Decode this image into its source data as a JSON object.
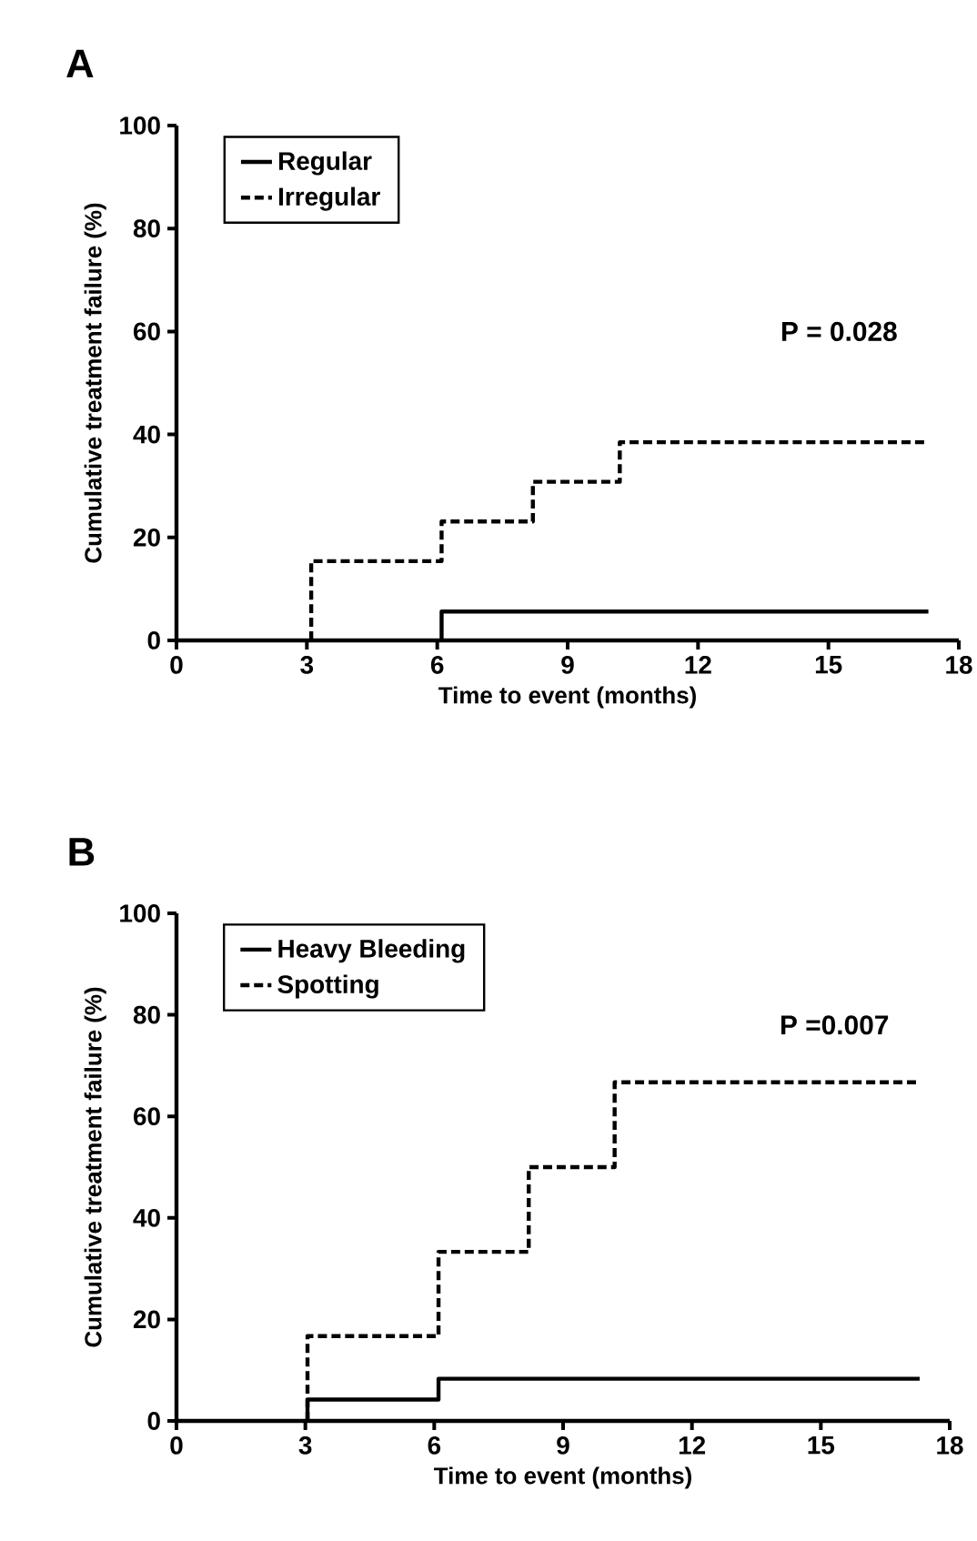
{
  "chart_data": [
    {
      "type": "step",
      "title": "A",
      "xlabel": "Time to event (months)",
      "ylabel": "Cumulative treatment failure (%)",
      "xlim": [
        0,
        18
      ],
      "ylim": [
        0,
        100
      ],
      "xticks": [
        0,
        3,
        6,
        9,
        12,
        15,
        18
      ],
      "yticks": [
        0,
        20,
        40,
        60,
        80,
        100
      ],
      "legend": "top left",
      "annotations": [
        "P = 0.028"
      ],
      "series": [
        {
          "name": "Regular",
          "color": "#000000",
          "line_style": "solid",
          "x": [
            6.1,
            6.1,
            17.3
          ],
          "values": [
            0,
            5.6,
            5.6
          ]
        },
        {
          "name": "Irregular",
          "color": "#000000",
          "line_style": "dashed",
          "x": [
            3.1,
            3.1,
            6.1,
            8.2,
            10.2,
            17.3
          ],
          "values": [
            0,
            15.4,
            23.1,
            30.8,
            38.5,
            38.5
          ]
        }
      ]
    },
    {
      "type": "step",
      "title": "B",
      "xlabel": "Time to event (months)",
      "ylabel": "Cumulative treatment failure (%)",
      "xlim": [
        0,
        18
      ],
      "ylim": [
        0,
        100
      ],
      "xticks": [
        0,
        3,
        6,
        9,
        12,
        15,
        18
      ],
      "yticks": [
        0,
        20,
        40,
        60,
        80,
        100
      ],
      "legend": "top left",
      "annotations": [
        "P =0.007"
      ],
      "series": [
        {
          "name": "Heavy  Bleeding",
          "color": "#000000",
          "line_style": "solid",
          "x": [
            3.05,
            3.05,
            6.1,
            17.3
          ],
          "values": [
            0,
            4.2,
            8.3,
            8.3
          ]
        },
        {
          "name": "Spotting",
          "color": "#000000",
          "line_style": "dashed",
          "x": [
            3.05,
            3.05,
            6.1,
            8.2,
            10.2,
            17.3
          ],
          "values": [
            0,
            16.7,
            33.3,
            50,
            66.7,
            66.7
          ]
        }
      ]
    }
  ]
}
